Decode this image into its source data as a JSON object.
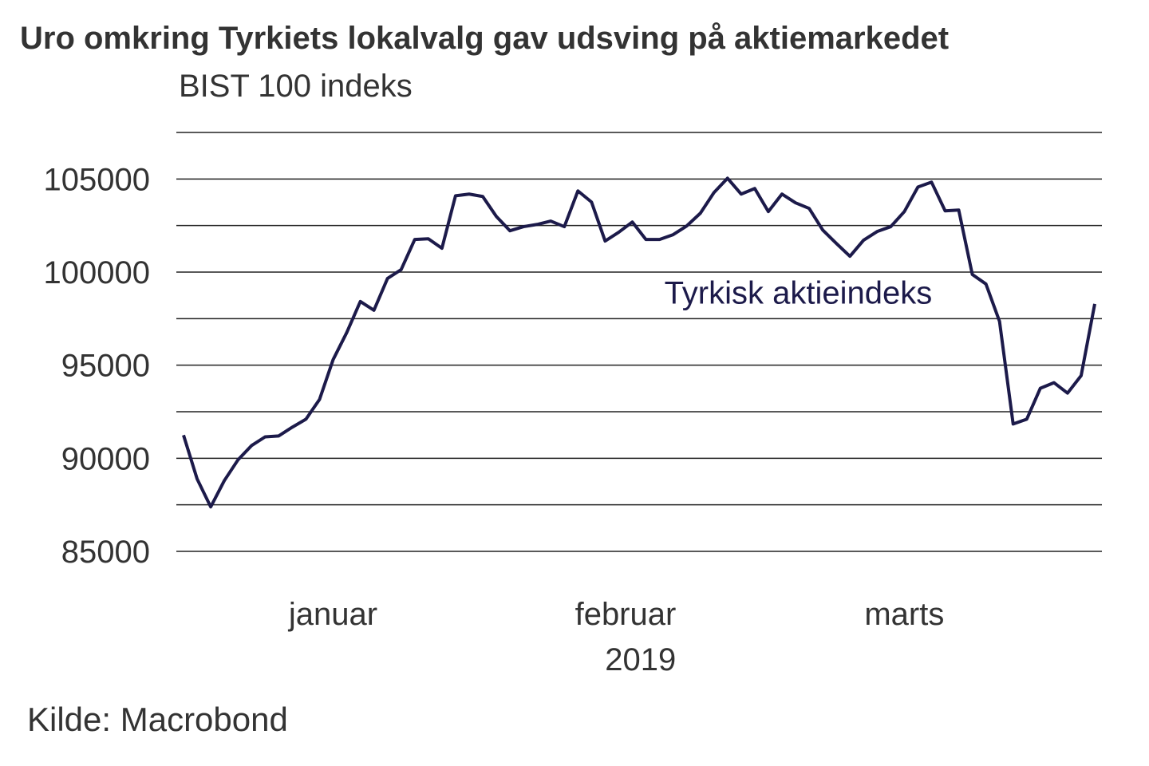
{
  "chart_data": {
    "type": "line",
    "title": "Uro omkring Tyrkiets lokalvalg gav udsving på aktiemarkedet",
    "subtitle": "BIST 100 indeks",
    "source": "Kilde: Macrobond",
    "ylim": [
      85000,
      107500
    ],
    "grid_step": 2500,
    "yticks": [
      85000,
      90000,
      95000,
      100000,
      105000
    ],
    "ytick_labels": [
      "85000",
      "90000",
      "95000",
      "100000",
      "105000"
    ],
    "x_ticks": [
      {
        "label": "januar",
        "index": 11
      },
      {
        "label": "februar",
        "index": 32.5
      },
      {
        "label": "marts",
        "index": 53
      }
    ],
    "x_year_label": {
      "label": "2019",
      "index": 33.6
    },
    "grid": true,
    "series": [
      {
        "name": "Tyrkisk aktieindeks",
        "color": "#1c1a4a",
        "label_index": 35,
        "label_value": 98900,
        "values": [
          91240,
          88890,
          87390,
          88800,
          89910,
          90680,
          91150,
          91200,
          91670,
          92100,
          93160,
          95300,
          96750,
          98420,
          97950,
          99660,
          100130,
          101750,
          101790,
          101280,
          104100,
          104190,
          104060,
          102990,
          102220,
          102440,
          102560,
          102740,
          102440,
          104360,
          103760,
          101670,
          102140,
          102690,
          101750,
          101750,
          102010,
          102480,
          103160,
          104270,
          105040,
          104190,
          104490,
          103250,
          104190,
          103720,
          103420,
          102260,
          101540,
          100850,
          101710,
          102180,
          102440,
          103250,
          104570,
          104830,
          103290,
          103330,
          99870,
          99360,
          97350,
          91840,
          92100,
          93760,
          94060,
          93500,
          94440,
          98290
        ]
      }
    ]
  }
}
